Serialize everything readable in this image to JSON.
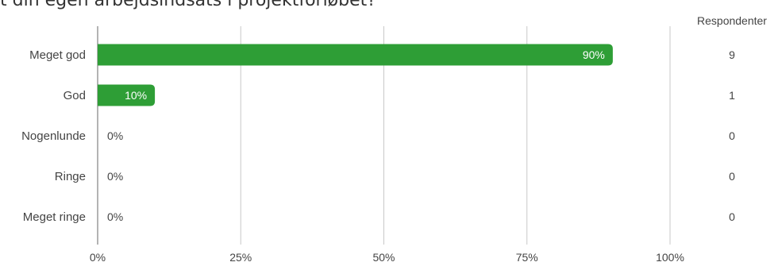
{
  "title_fragment": "t din egen arbejdsindsats i projektforløbet?",
  "respondents_header": "Respondenter",
  "colors": {
    "bar": "#2e9e36",
    "bar_label_inside": "#ffffff",
    "text": "#444444",
    "grid": "#c8c8c8",
    "axis": "#9a9a9a"
  },
  "chart_data": {
    "type": "bar",
    "orientation": "horizontal",
    "categories": [
      "Meget god",
      "God",
      "Nogenlunde",
      "Ringe",
      "Meget ringe"
    ],
    "values": [
      90,
      10,
      0,
      0,
      0
    ],
    "value_labels": [
      "90%",
      "10%",
      "0%",
      "0%",
      "0%"
    ],
    "respondents": [
      "9",
      "1",
      "0",
      "0",
      "0"
    ],
    "xlim": [
      0,
      100
    ],
    "x_ticks": [
      "0%",
      "25%",
      "50%",
      "75%",
      "100%"
    ],
    "grid": true
  }
}
